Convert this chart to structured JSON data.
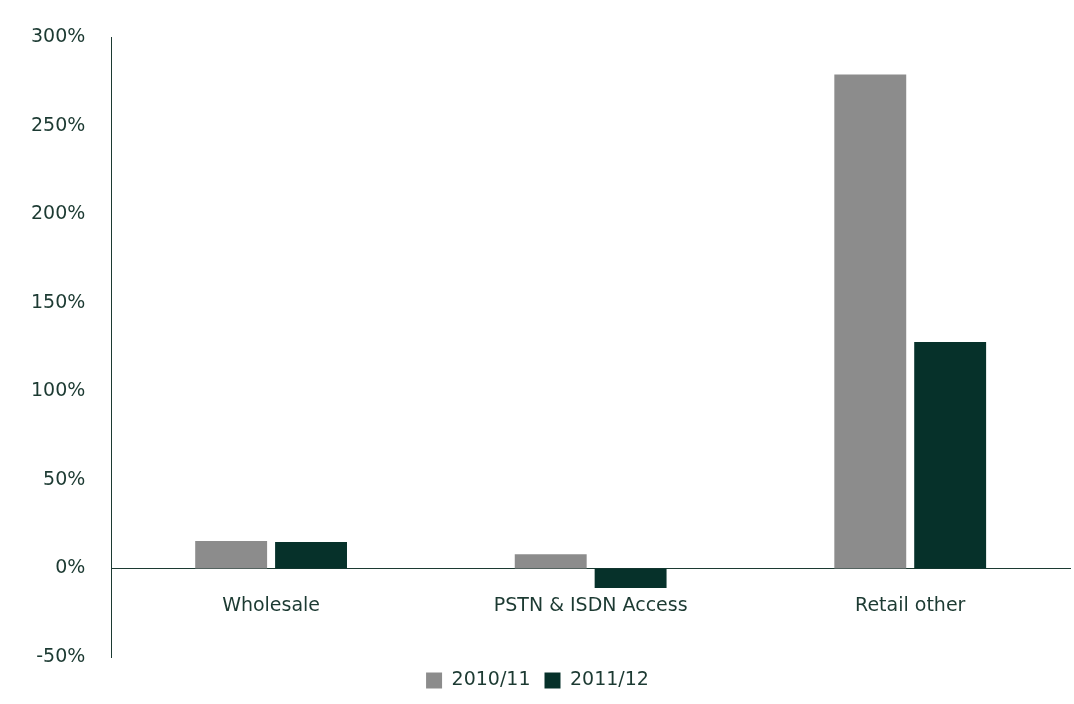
{
  "chart_data": {
    "type": "bar",
    "categories": [
      "Wholesale",
      "PSTN & ISDN Access",
      "Retail other"
    ],
    "series": [
      {
        "name": "2010/11",
        "color": "#8c8c8c",
        "values": [
          15.5,
          8,
          279
        ]
      },
      {
        "name": "2011/12",
        "color": "#06312a",
        "values": [
          15,
          -11,
          128
        ]
      }
    ],
    "ylim": [
      -50,
      300
    ],
    "yticks": [
      {
        "value": -50,
        "label": "-50%"
      },
      {
        "value": 0,
        "label": "0%"
      },
      {
        "value": 50,
        "label": "50%"
      },
      {
        "value": 100,
        "label": "100%"
      },
      {
        "value": 150,
        "label": "150%"
      },
      {
        "value": 200,
        "label": "200%"
      },
      {
        "value": 250,
        "label": "250%"
      },
      {
        "value": 300,
        "label": "300%"
      }
    ],
    "grid": false,
    "legend": "bottom"
  }
}
